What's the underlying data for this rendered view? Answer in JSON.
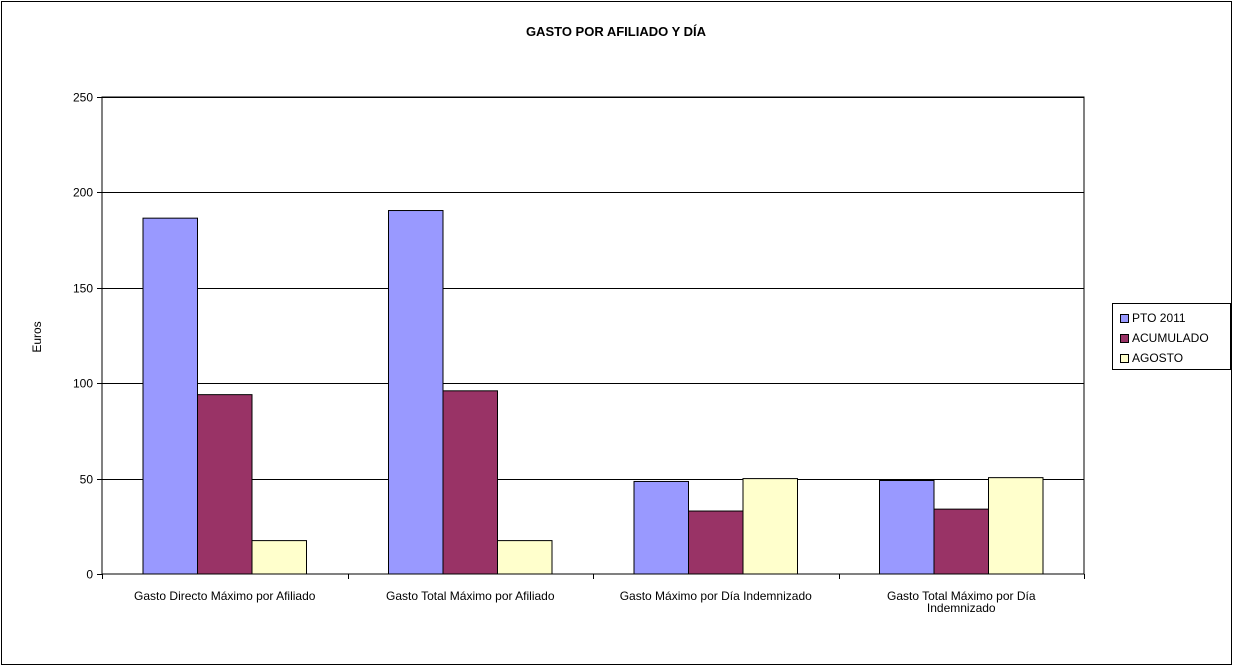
{
  "chart_data": {
    "type": "bar",
    "title": "GASTO POR AFILIADO Y DÍA",
    "ylabel": "Euros",
    "xlabel": "",
    "ylim": [
      0,
      250
    ],
    "yticks": [
      0,
      50,
      100,
      150,
      200,
      250
    ],
    "grid": true,
    "legend_position": "right",
    "categories": [
      [
        "Gasto Directo Máximo  por Afiliado"
      ],
      [
        "Gasto Total Máximo  por Afiliado"
      ],
      [
        "Gasto Máximo por Día  Indemnizado"
      ],
      [
        "Gasto Total Máximo  por Día",
        "Indemnizado"
      ]
    ],
    "series": [
      {
        "name": "PTO 2011",
        "color": "#9999ff",
        "values": [
          186.5,
          190.5,
          48.5,
          49
        ]
      },
      {
        "name": "ACUMULADO",
        "color": "#993366",
        "values": [
          94,
          96,
          33,
          34
        ]
      },
      {
        "name": "AGOSTO",
        "color": "#ffffcc",
        "values": [
          17.5,
          17.5,
          50,
          50.5
        ]
      }
    ]
  }
}
